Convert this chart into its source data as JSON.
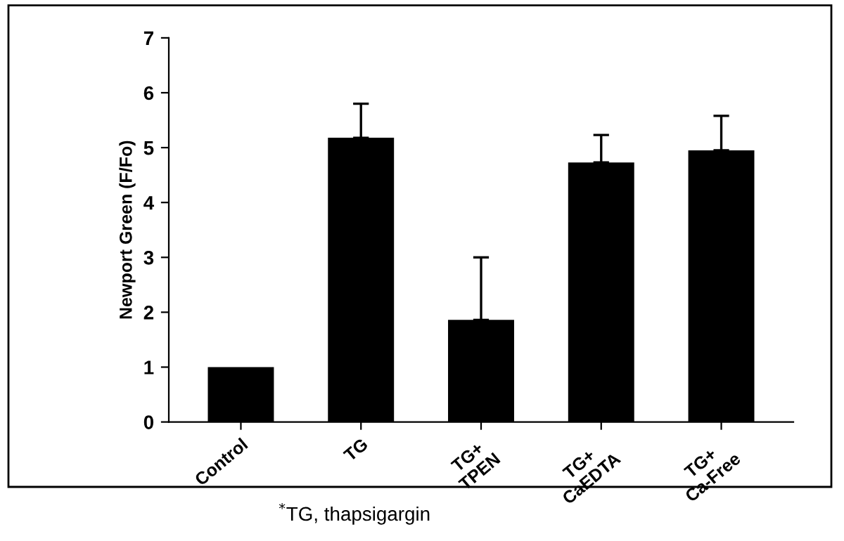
{
  "chart_data": {
    "type": "bar",
    "ylabel": "Newport Green (F/Fo)",
    "categories": [
      "Control",
      "TG",
      "TG+\nTPEN",
      "TG+\nCaEDTA",
      "TG+\nCa-Free"
    ],
    "values": [
      1.0,
      5.18,
      1.86,
      4.73,
      4.95
    ],
    "errors": [
      null,
      [
        5.18,
        5.8
      ],
      [
        1.86,
        3.0
      ],
      [
        4.73,
        5.23
      ],
      [
        4.95,
        5.58
      ]
    ],
    "color": "#000000",
    "ylim": [
      0,
      7
    ],
    "yticks": [
      0,
      1,
      2,
      3,
      4,
      5,
      6,
      7
    ],
    "grid": false,
    "annotations": [
      "$^{*}$TG, thapsigargin"
    ]
  }
}
